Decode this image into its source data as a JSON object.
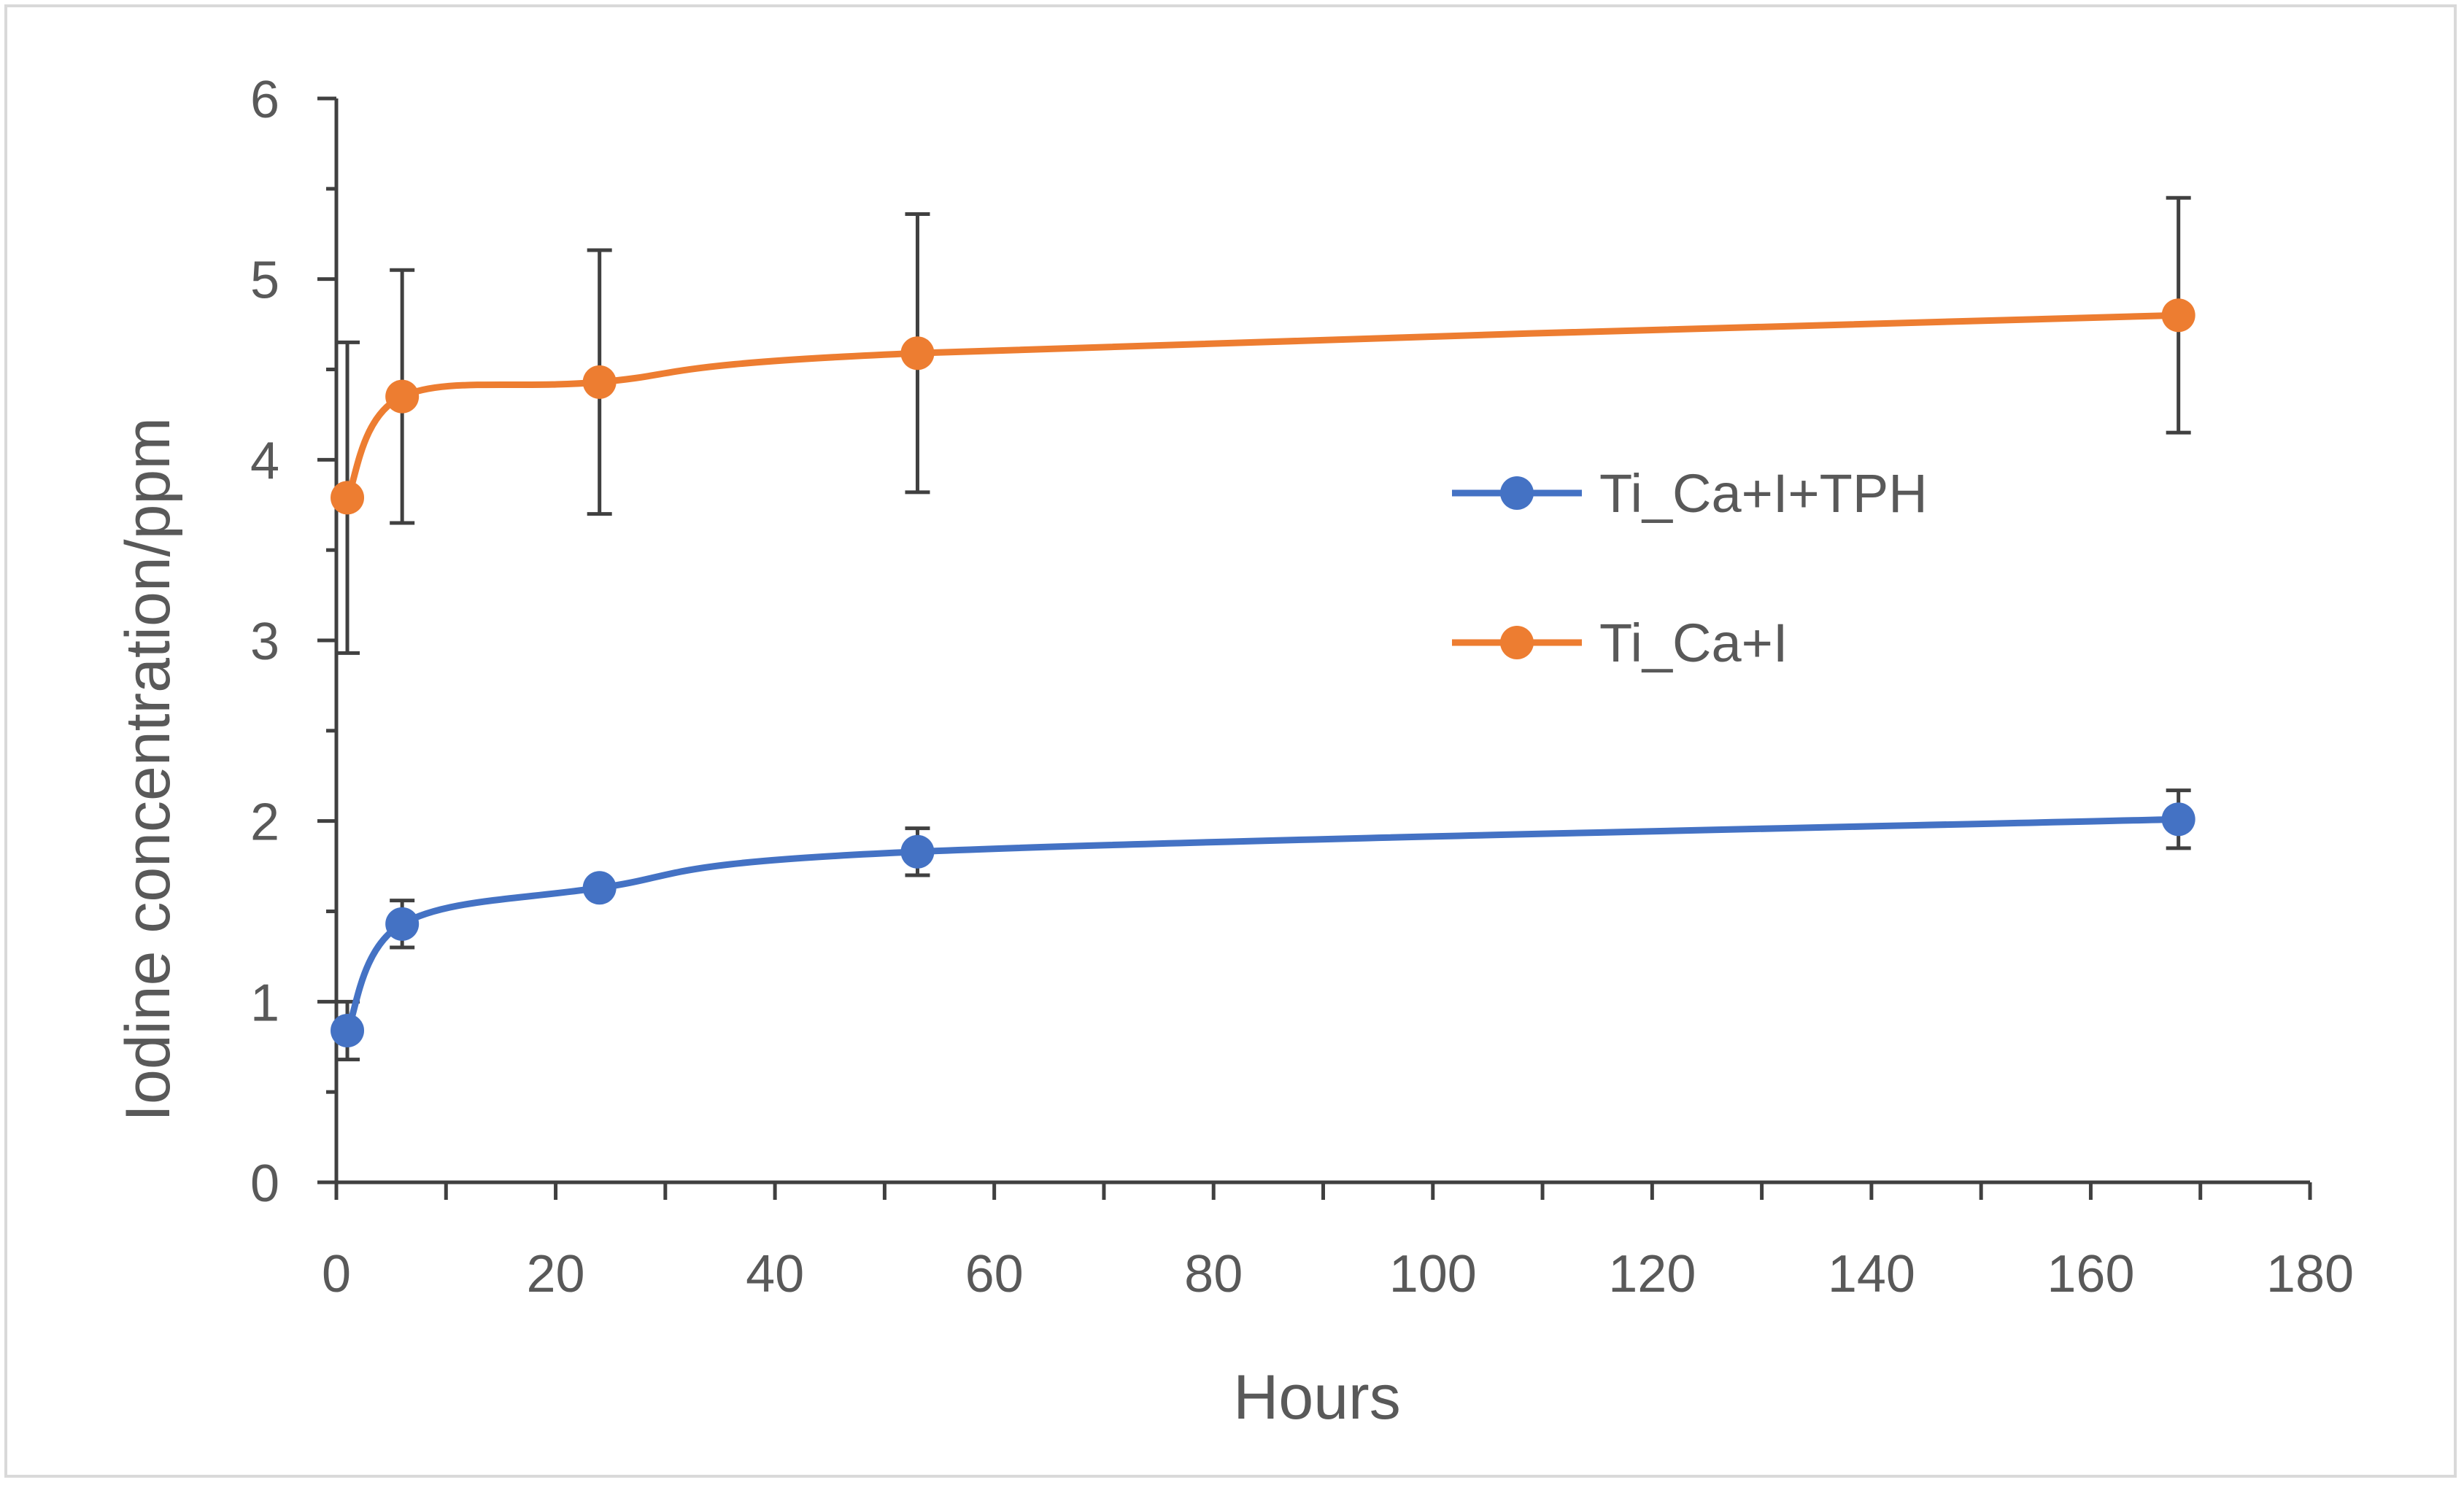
{
  "chart_data": {
    "type": "line",
    "title": "",
    "xlabel": "Hours",
    "ylabel": "Iodine concentration/ppm",
    "xlim": [
      0,
      180
    ],
    "ylim": [
      0,
      6
    ],
    "xticks": [
      0,
      20,
      40,
      60,
      80,
      100,
      120,
      140,
      160,
      180
    ],
    "yticks": [
      0,
      1,
      2,
      3,
      4,
      5,
      6
    ],
    "grid": false,
    "legend_position": "right",
    "series": [
      {
        "name": "Ti_Ca+I+TPH",
        "color": "#4472c4",
        "x": [
          1,
          6,
          24,
          53,
          168
        ],
        "y": [
          0.84,
          1.43,
          1.63,
          1.83,
          2.01
        ],
        "error": [
          0.16,
          0.13,
          0.0,
          0.13,
          0.16
        ]
      },
      {
        "name": "Ti_Ca+I",
        "color": "#ed7d31",
        "x": [
          1,
          6,
          24,
          53,
          168
        ],
        "y": [
          3.79,
          4.35,
          4.43,
          4.59,
          4.8
        ],
        "error": [
          0.86,
          0.7,
          0.73,
          0.77,
          0.65
        ]
      }
    ]
  }
}
